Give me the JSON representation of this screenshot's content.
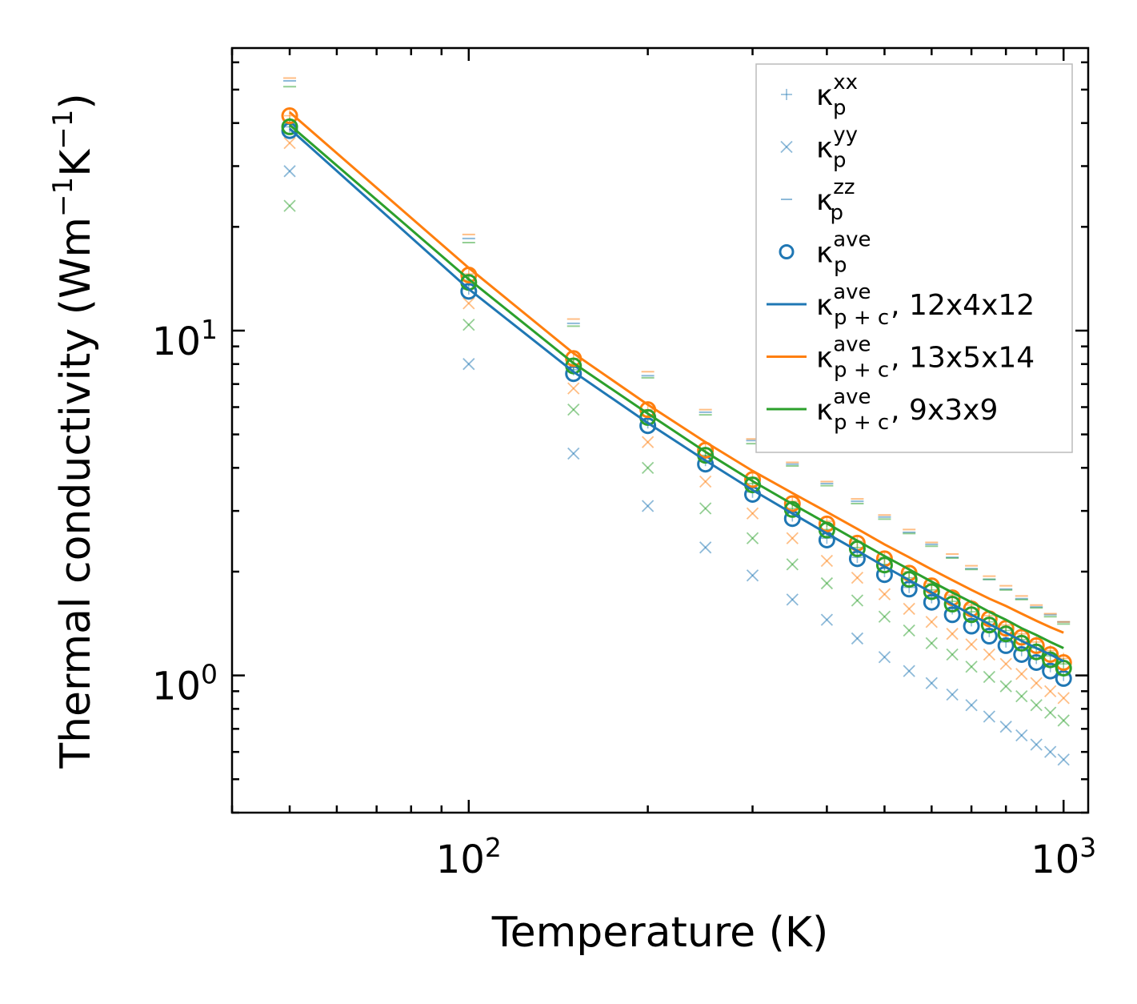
{
  "chart_data": {
    "type": "scatter",
    "title": "",
    "xlabel": "Temperature (K)",
    "ylabel_main": "Thermal conductivity (Wm",
    "ylabel_sup1": "−1",
    "ylabel_mid": "K",
    "ylabel_sup2": "−1",
    "ylabel_end": ")",
    "xscale": "log",
    "yscale": "log",
    "xlim": [
      40,
      1100
    ],
    "ylim": [
      0.4,
      66
    ],
    "xticks": [
      {
        "value": 100,
        "base": "10",
        "exp": "2"
      },
      {
        "value": 1000,
        "base": "10",
        "exp": "3"
      }
    ],
    "yticks": [
      {
        "value": 1,
        "base": "10",
        "exp": "0"
      },
      {
        "value": 10,
        "base": "10",
        "exp": "1"
      }
    ],
    "x": [
      50,
      100,
      150,
      200,
      250,
      300,
      350,
      400,
      450,
      500,
      550,
      600,
      650,
      700,
      750,
      800,
      850,
      900,
      950,
      1000
    ],
    "colors": {
      "c0": "#1f77b4",
      "c1": "#ff7f0e",
      "c2": "#2ca02c"
    },
    "legend": {
      "position": "top-right",
      "entries": [
        {
          "kind": "plus",
          "base": "κ",
          "sub": "p",
          "sup": "xx",
          "suffix": ""
        },
        {
          "kind": "cross",
          "base": "κ",
          "sub": "p",
          "sup": "yy",
          "suffix": ""
        },
        {
          "kind": "dash",
          "base": "κ",
          "sub": "p",
          "sup": "zz",
          "suffix": ""
        },
        {
          "kind": "circle",
          "base": "κ",
          "sub": "p",
          "sup": "ave",
          "suffix": ""
        },
        {
          "kind": "line",
          "color": "#1f77b4",
          "base": "κ",
          "sub": "p + c",
          "sup": "ave",
          "suffix": ", 12x4x12"
        },
        {
          "kind": "line",
          "color": "#ff7f0e",
          "base": "κ",
          "sub": "p + c",
          "sup": "ave",
          "suffix": ", 13x5x14"
        },
        {
          "kind": "line",
          "color": "#2ca02c",
          "base": "κ",
          "sub": "p + c",
          "sup": "ave",
          "suffix": ", 9x3x9"
        }
      ]
    },
    "series": [
      {
        "name": "12x4x12",
        "color": "#1f77b4",
        "xx": [
          39.0,
          13.2,
          7.7,
          5.4,
          4.2,
          3.4,
          2.9,
          2.5,
          2.2,
          2.0,
          1.8,
          1.68,
          1.56,
          1.44,
          1.34,
          1.25,
          1.18,
          1.12,
          1.06,
          1.0
        ],
        "yy": [
          29.0,
          8.0,
          4.4,
          3.1,
          2.35,
          1.95,
          1.66,
          1.45,
          1.28,
          1.13,
          1.03,
          0.95,
          0.88,
          0.82,
          0.76,
          0.71,
          0.67,
          0.63,
          0.6,
          0.57
        ],
        "zz": [
          53.0,
          18.5,
          10.5,
          7.4,
          5.8,
          4.8,
          4.1,
          3.6,
          3.2,
          2.88,
          2.6,
          2.4,
          2.2,
          2.04,
          1.9,
          1.78,
          1.67,
          1.58,
          1.5,
          1.43
        ],
        "ave": [
          38.0,
          13.0,
          7.5,
          5.3,
          4.1,
          3.35,
          2.85,
          2.47,
          2.18,
          1.96,
          1.78,
          1.63,
          1.5,
          1.39,
          1.3,
          1.22,
          1.15,
          1.09,
          1.03,
          0.98
        ],
        "line": [
          38.5,
          13.2,
          7.6,
          5.4,
          4.2,
          3.45,
          2.95,
          2.58,
          2.3,
          2.07,
          1.89,
          1.74,
          1.61,
          1.5,
          1.41,
          1.33,
          1.26,
          1.2,
          1.15,
          1.1
        ]
      },
      {
        "name": "13x5x14",
        "color": "#ff7f0e",
        "xx": [
          42.0,
          14.6,
          8.3,
          5.9,
          4.55,
          3.75,
          3.2,
          2.8,
          2.45,
          2.2,
          2.0,
          1.85,
          1.71,
          1.6,
          1.49,
          1.4,
          1.32,
          1.25,
          1.18,
          1.12
        ],
        "yy": [
          35.0,
          12.0,
          6.8,
          4.75,
          3.65,
          2.95,
          2.5,
          2.15,
          1.92,
          1.72,
          1.56,
          1.43,
          1.32,
          1.23,
          1.15,
          1.08,
          1.01,
          0.95,
          0.9,
          0.86
        ],
        "zz": [
          54.0,
          19.0,
          10.8,
          7.6,
          5.9,
          4.85,
          4.15,
          3.65,
          3.25,
          2.92,
          2.65,
          2.43,
          2.25,
          2.08,
          1.94,
          1.82,
          1.7,
          1.6,
          1.51,
          1.43
        ],
        "ave": [
          42.0,
          14.5,
          8.3,
          5.9,
          4.5,
          3.7,
          3.15,
          2.75,
          2.42,
          2.18,
          1.98,
          1.82,
          1.68,
          1.56,
          1.46,
          1.37,
          1.29,
          1.22,
          1.15,
          1.09
        ],
        "line": [
          43.0,
          15.2,
          8.6,
          6.1,
          4.75,
          3.92,
          3.38,
          2.98,
          2.66,
          2.4,
          2.2,
          2.03,
          1.89,
          1.77,
          1.67,
          1.59,
          1.51,
          1.44,
          1.38,
          1.33
        ]
      },
      {
        "name": "9x3x9",
        "color": "#2ca02c",
        "xx": [
          40.0,
          14.0,
          8.0,
          5.65,
          4.35,
          3.6,
          3.05,
          2.65,
          2.35,
          2.1,
          1.92,
          1.77,
          1.64,
          1.53,
          1.43,
          1.35,
          1.27,
          1.2,
          1.14,
          1.08
        ],
        "yy": [
          23.0,
          10.4,
          5.9,
          4.0,
          3.05,
          2.5,
          2.1,
          1.85,
          1.65,
          1.48,
          1.35,
          1.24,
          1.15,
          1.06,
          0.99,
          0.93,
          0.87,
          0.82,
          0.78,
          0.74
        ],
        "zz": [
          51.0,
          18.0,
          10.3,
          7.3,
          5.7,
          4.7,
          4.05,
          3.55,
          3.15,
          2.84,
          2.58,
          2.37,
          2.19,
          2.03,
          1.9,
          1.77,
          1.66,
          1.57,
          1.48,
          1.41
        ],
        "ave": [
          39.0,
          13.8,
          7.9,
          5.6,
          4.35,
          3.57,
          3.03,
          2.64,
          2.33,
          2.09,
          1.9,
          1.75,
          1.61,
          1.5,
          1.4,
          1.32,
          1.24,
          1.17,
          1.11,
          1.05
        ],
        "line": [
          39.5,
          14.1,
          8.05,
          5.75,
          4.45,
          3.66,
          3.14,
          2.76,
          2.46,
          2.22,
          2.03,
          1.87,
          1.74,
          1.63,
          1.53,
          1.45,
          1.37,
          1.31,
          1.25,
          1.2
        ]
      }
    ]
  }
}
